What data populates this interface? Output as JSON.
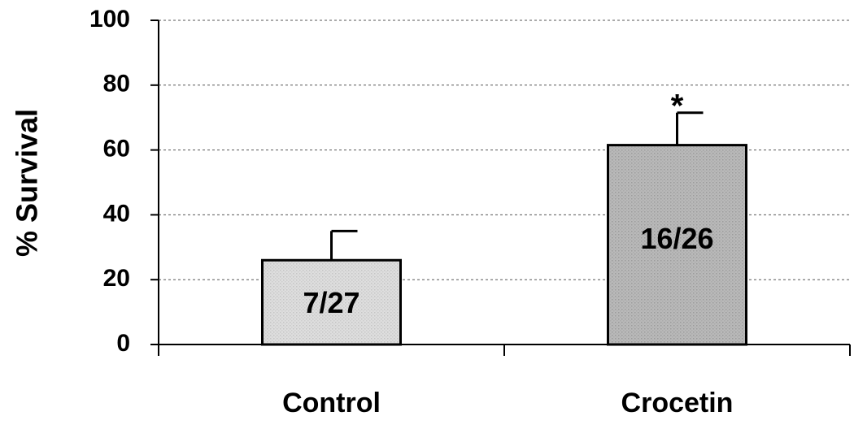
{
  "chart_data": {
    "type": "bar",
    "y_label": "% Survival",
    "categories": [
      "Control",
      "Crocetin"
    ],
    "values": [
      26,
      61.5
    ],
    "errors": [
      9,
      10
    ],
    "bar_labels": [
      "7/27",
      "16/26"
    ],
    "annotations": [
      {
        "label": "*",
        "x": "Crocetin"
      }
    ],
    "colors": [
      "#dedede",
      "#b9b9b9"
    ],
    "ylim": [
      0,
      100
    ],
    "yticks": [
      0,
      20,
      40,
      60,
      80,
      100
    ],
    "grid": true
  }
}
